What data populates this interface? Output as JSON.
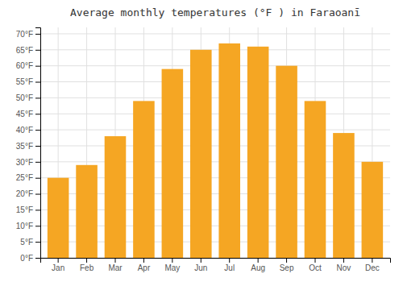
{
  "chart_data": {
    "type": "bar",
    "title": "Average monthly temperatures (°F ) in Faraoanī",
    "categories": [
      "Jan",
      "Feb",
      "Mar",
      "Apr",
      "May",
      "Jun",
      "Jul",
      "Aug",
      "Sep",
      "Oct",
      "Nov",
      "Dec"
    ],
    "values": [
      25,
      29,
      38,
      49,
      59,
      65,
      67,
      66,
      60,
      49,
      39,
      30
    ],
    "color": "#F5A623",
    "ylim": [
      0,
      72
    ],
    "yticks": [
      {
        "value": 0,
        "label": "0°F"
      },
      {
        "value": 5,
        "label": "5°F"
      },
      {
        "value": 10,
        "label": "10°F"
      },
      {
        "value": 15,
        "label": "15°F"
      },
      {
        "value": 20,
        "label": "20°F"
      },
      {
        "value": 25,
        "label": "25°F"
      },
      {
        "value": 30,
        "label": "30°F"
      },
      {
        "value": 35,
        "label": "35°F"
      },
      {
        "value": 40,
        "label": "40°F"
      },
      {
        "value": 45,
        "label": "45°F"
      },
      {
        "value": 50,
        "label": "50°F"
      },
      {
        "value": 55,
        "label": "55°F"
      },
      {
        "value": 60,
        "label": "60°F"
      },
      {
        "value": 65,
        "label": "65°F"
      },
      {
        "value": 70,
        "label": "70°F"
      }
    ],
    "grid": true
  }
}
